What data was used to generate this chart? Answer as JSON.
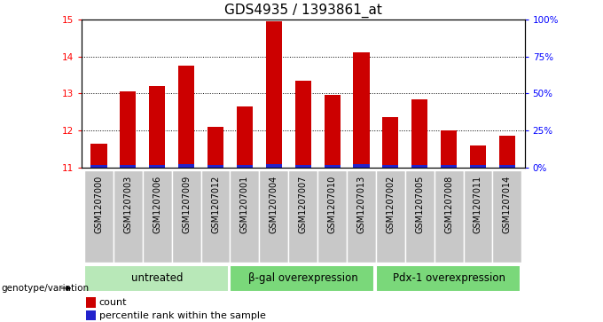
{
  "title": "GDS4935 / 1393861_at",
  "samples": [
    "GSM1207000",
    "GSM1207003",
    "GSM1207006",
    "GSM1207009",
    "GSM1207012",
    "GSM1207001",
    "GSM1207004",
    "GSM1207007",
    "GSM1207010",
    "GSM1207013",
    "GSM1207002",
    "GSM1207005",
    "GSM1207008",
    "GSM1207011",
    "GSM1207014"
  ],
  "count_values": [
    11.65,
    13.05,
    13.2,
    13.75,
    12.1,
    12.65,
    14.95,
    13.35,
    12.95,
    14.1,
    12.35,
    12.85,
    12.0,
    11.6,
    11.85
  ],
  "percentile_values": [
    11.06,
    11.07,
    11.07,
    11.08,
    11.07,
    11.07,
    11.09,
    11.07,
    11.06,
    11.08,
    11.07,
    11.07,
    11.06,
    11.07,
    11.06
  ],
  "groups": [
    {
      "label": "untreated",
      "start": 0,
      "end": 5,
      "color": "#b8e8b8"
    },
    {
      "label": "β-gal overexpression",
      "start": 5,
      "end": 10,
      "color": "#7ad87a"
    },
    {
      "label": "Pdx-1 overexpression",
      "start": 10,
      "end": 15,
      "color": "#7ad87a"
    }
  ],
  "ylim_left": [
    11,
    15
  ],
  "ylim_right": [
    0,
    100
  ],
  "yticks_left": [
    11,
    12,
    13,
    14,
    15
  ],
  "yticks_right": [
    0,
    25,
    50,
    75,
    100
  ],
  "ytick_labels_right": [
    "0%",
    "25%",
    "50%",
    "75%",
    "100%"
  ],
  "bar_color_red": "#cc0000",
  "bar_color_blue": "#2222cc",
  "bar_width": 0.55,
  "sample_box_color": "#c8c8c8",
  "plot_bg": "#ffffff",
  "legend_count": "count",
  "legend_pct": "percentile rank within the sample",
  "genotype_label": "genotype/variation",
  "title_fontsize": 11,
  "tick_fontsize": 7.5,
  "sample_fontsize": 7,
  "group_fontsize": 8.5
}
